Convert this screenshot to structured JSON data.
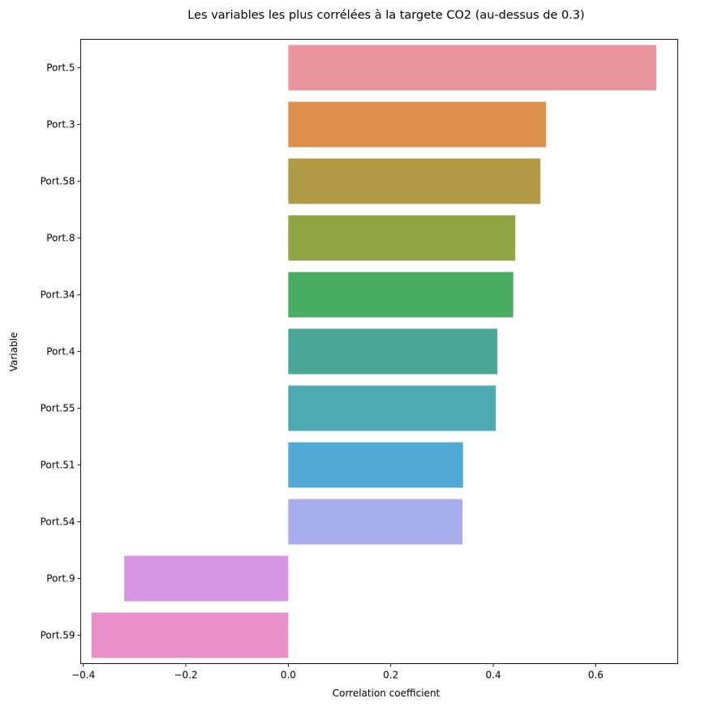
{
  "chart_data": {
    "type": "bar",
    "orientation": "horizontal",
    "title": "Les variables les plus corrélées à la targete CO2 (au-dessus de 0.3)",
    "xlabel": "Correlation coefficient",
    "ylabel": "Variable",
    "xlim": [
      -0.405,
      0.76
    ],
    "xticks": [
      -0.4,
      -0.2,
      0.0,
      0.2,
      0.4,
      0.6
    ],
    "xtick_labels": [
      "−0.4",
      "−0.2",
      "0.0",
      "0.2",
      "0.4",
      "0.6"
    ],
    "grid": false,
    "categories": [
      "Port.5",
      "Port.3",
      "Port.58",
      "Port.8",
      "Port.34",
      "Port.4",
      "Port.55",
      "Port.51",
      "Port.54",
      "Port.9",
      "Port.59"
    ],
    "values": [
      0.718,
      0.503,
      0.492,
      0.443,
      0.439,
      0.408,
      0.405,
      0.341,
      0.34,
      -0.32,
      -0.384
    ],
    "colors": [
      "#e8959e",
      "#dc904c",
      "#b29b47",
      "#8ea445",
      "#48ad63",
      "#4aa796",
      "#4ca9b0",
      "#52a9d5",
      "#a7acea",
      "#d794e4",
      "#e88ec8"
    ]
  }
}
